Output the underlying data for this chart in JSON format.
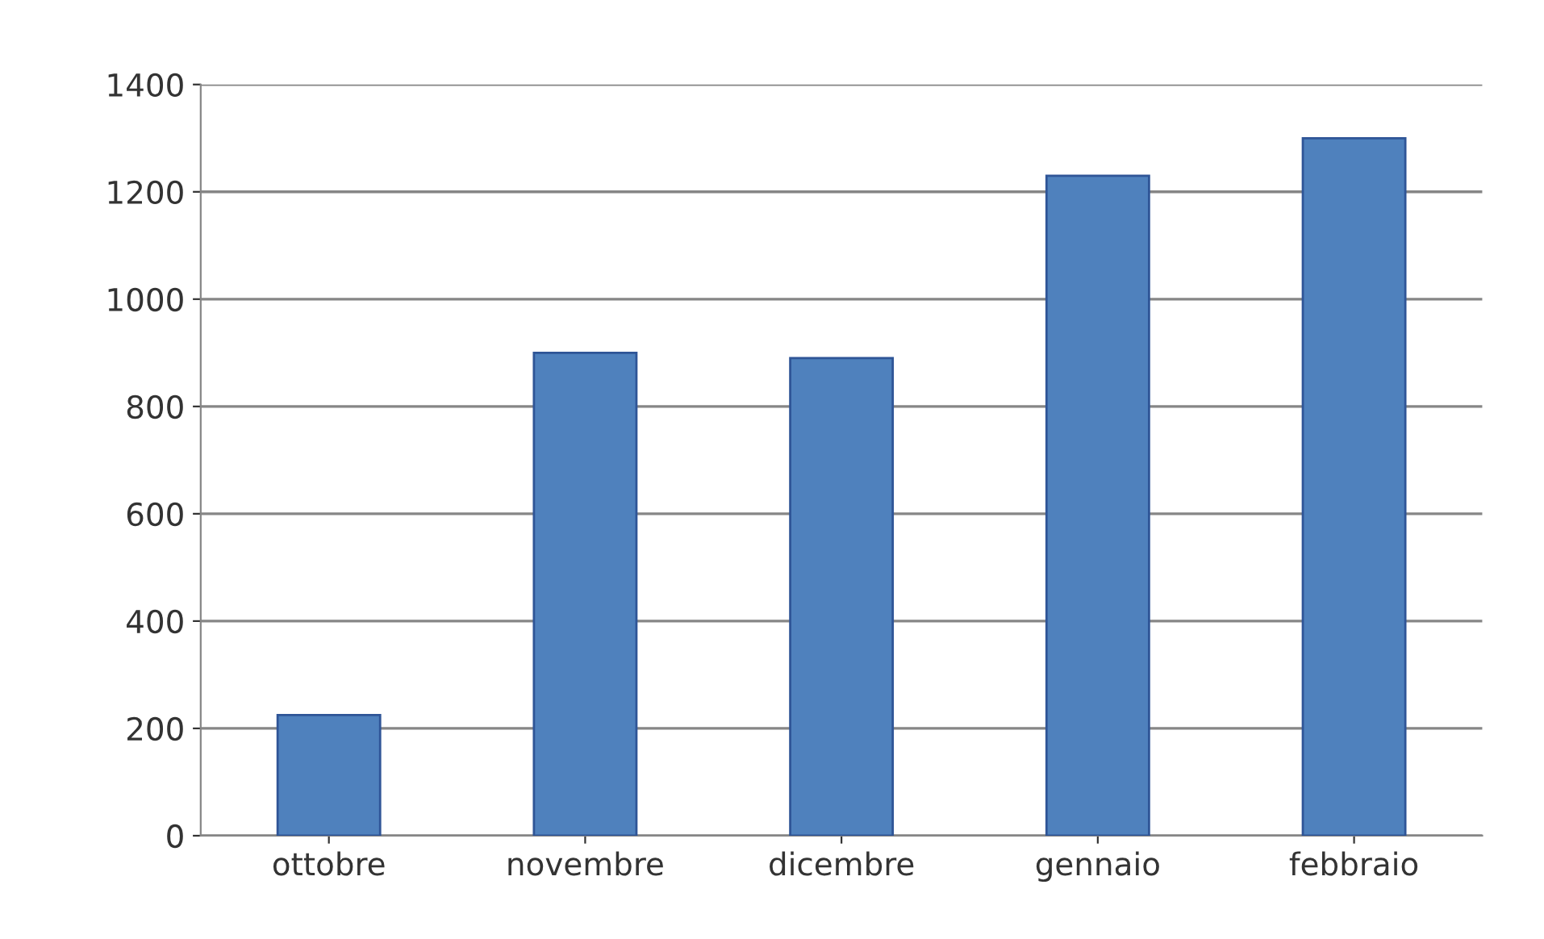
{
  "chart_data": {
    "type": "bar",
    "categories": [
      "ottobre",
      "novembre",
      "dicembre",
      "gennaio",
      "febbraio"
    ],
    "values": [
      225,
      900,
      890,
      1230,
      1300
    ],
    "color": "#4f81bd",
    "ylim": [
      0,
      1400
    ],
    "yticks": [
      0,
      200,
      400,
      600,
      800,
      1000,
      1200,
      1400
    ],
    "grid": "y"
  }
}
